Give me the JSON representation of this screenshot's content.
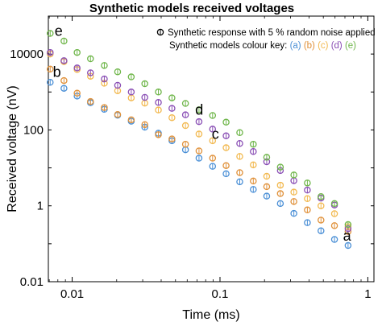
{
  "chart_data": {
    "type": "scatter",
    "title": "Synthetic models received voltages",
    "xlabel": "Time (ms)",
    "ylabel": "Received voltage (nV)",
    "xscale": "log",
    "yscale": "log",
    "xlim": [
      0.0069,
      1.1
    ],
    "ylim": [
      0.01,
      100000
    ],
    "x_ticks": [
      0.01,
      0.1,
      1
    ],
    "x_tick_labels": [
      "0.01",
      "0.1",
      "1"
    ],
    "y_ticks": [
      0.01,
      1,
      100,
      10000
    ],
    "y_tick_labels": [
      "0.01",
      "1",
      "100",
      "10000"
    ],
    "grid": false,
    "legend": {
      "placement": "top-right",
      "marker_text": "Synthetic response with 5 % random noise applied",
      "key_prefix": "Synthetic models colour key:",
      "key_entries": [
        "(a)",
        "(b)",
        "(c)",
        "(d)",
        "(e)"
      ]
    },
    "series": [
      {
        "label": "a",
        "color": "#4a8fd6",
        "label_point": [
          0.68,
          0.12
        ],
        "x": [
          0.0071,
          0.0088,
          0.0108,
          0.0133,
          0.0165,
          0.0203,
          0.0251,
          0.031,
          0.0383,
          0.0473,
          0.0584,
          0.0721,
          0.0891,
          0.11,
          0.136,
          0.168,
          0.207,
          0.256,
          0.316,
          0.39,
          0.482,
          0.595,
          0.735
        ],
        "y": [
          1800,
          1250,
          780,
          520,
          350,
          245,
          170,
          118,
          82,
          52,
          30,
          18,
          11,
          7,
          4.3,
          2.7,
          1.8,
          1.15,
          0.63,
          0.36,
          0.22,
          0.13,
          0.09
        ]
      },
      {
        "label": "b",
        "color": "#e0913a",
        "label_point": [
          0.0074,
          2500
        ],
        "x": [
          0.0071,
          0.0088,
          0.0108,
          0.0133,
          0.0165,
          0.0203,
          0.0251,
          0.031,
          0.0383,
          0.0473,
          0.0584,
          0.0721,
          0.0891,
          0.11,
          0.136,
          0.168,
          0.207,
          0.256,
          0.316,
          0.39,
          0.482,
          0.595,
          0.735
        ],
        "y": [
          4000,
          2000,
          930,
          560,
          390,
          255,
          185,
          138,
          75,
          58,
          42,
          28,
          18,
          11.5,
          7.5,
          4.5,
          3.2,
          2.1,
          1.3,
          0.78,
          0.42,
          0.3,
          0.21
        ]
      },
      {
        "label": "c",
        "color": "#f2b950",
        "label_point": [
          0.088,
          58
        ],
        "x": [
          0.0071,
          0.0088,
          0.0108,
          0.0133,
          0.0165,
          0.0203,
          0.0251,
          0.031,
          0.0383,
          0.0473,
          0.0584,
          0.0721,
          0.0891,
          0.11,
          0.136,
          0.168,
          0.207,
          0.256,
          0.316,
          0.39,
          0.482,
          0.595,
          0.735
        ],
        "y": [
          10000,
          6300,
          3900,
          2600,
          1700,
          1080,
          700,
          510,
          335,
          210,
          130,
          78,
          52,
          34,
          20,
          12,
          6,
          3.5,
          2.3,
          1.55,
          1.0,
          0.62,
          0.28
        ]
      },
      {
        "label": "d",
        "color": "#8a4fb5",
        "label_point": [
          0.068,
          250
        ],
        "x": [
          0.0071,
          0.0088,
          0.0108,
          0.0133,
          0.0165,
          0.0203,
          0.0251,
          0.031,
          0.0383,
          0.0473,
          0.0584,
          0.0721,
          0.0891,
          0.11,
          0.136,
          0.168,
          0.207,
          0.256,
          0.316,
          0.39,
          0.482,
          0.595,
          0.735
        ],
        "y": [
          11000,
          6700,
          4300,
          3200,
          2200,
          1500,
          1000,
          720,
          530,
          370,
          250,
          165,
          105,
          70,
          44,
          27,
          14.5,
          8.5,
          4.6,
          2.6,
          1.6,
          1.05,
          0.25
        ]
      },
      {
        "label": "e",
        "color": "#6fb64a",
        "label_point": [
          0.0076,
          30000
        ],
        "x": [
          0.0071,
          0.0088,
          0.0108,
          0.0133,
          0.0165,
          0.0203,
          0.0251,
          0.031,
          0.0383,
          0.0473,
          0.0584,
          0.0721,
          0.0891,
          0.11,
          0.136,
          0.168,
          0.207,
          0.256,
          0.316,
          0.39,
          0.482,
          0.595,
          0.735
        ],
        "y": [
          35000,
          22000,
          11000,
          7500,
          5000,
          3400,
          2500,
          1650,
          1000,
          700,
          500,
          340,
          240,
          160,
          85,
          42,
          19,
          10.5,
          6.5,
          4.0,
          1.75,
          1.15,
          0.32
        ]
      }
    ]
  }
}
